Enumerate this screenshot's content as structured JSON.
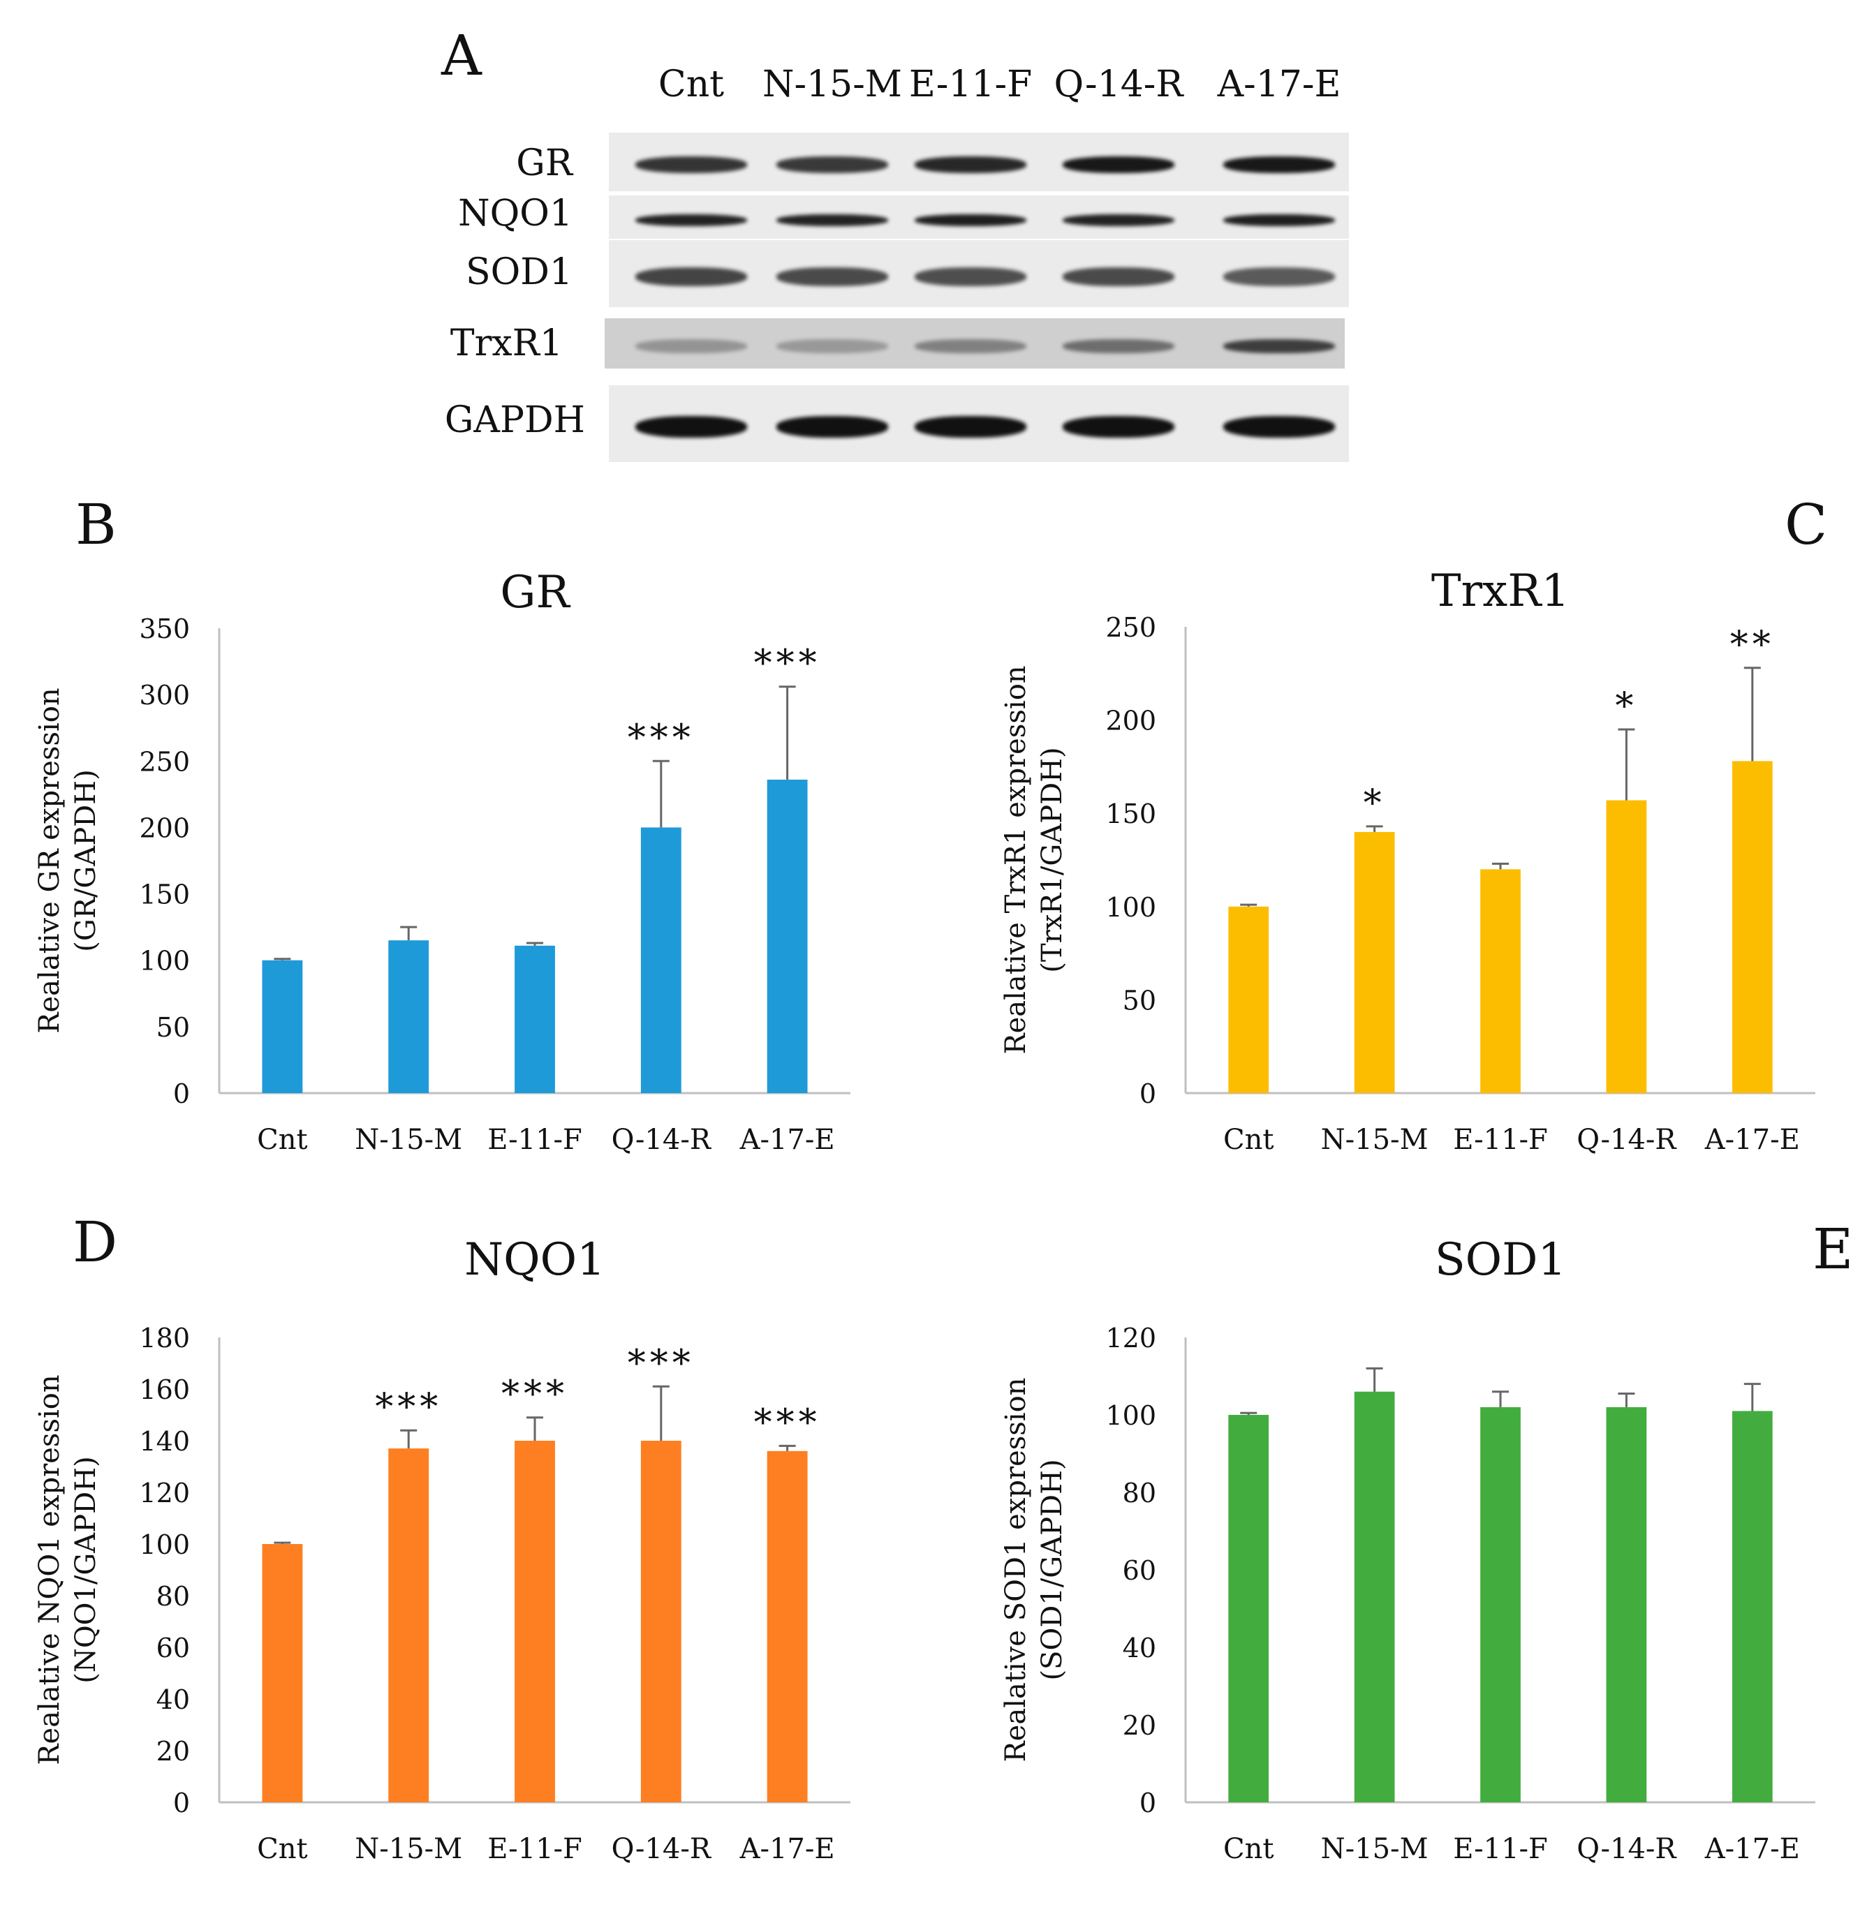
{
  "panels": {
    "a": "A",
    "b": "B",
    "c": "C",
    "d": "D",
    "e": "E"
  },
  "western_blot": {
    "lanes": [
      "Cnt",
      "N-15-M",
      "E-11-F",
      "Q-14-R",
      "A-17-E"
    ],
    "proteins": [
      {
        "name": "GR",
        "intensity": [
          0.82,
          0.8,
          0.88,
          0.95,
          0.95
        ]
      },
      {
        "name": "NQO1",
        "intensity": [
          0.9,
          0.9,
          0.92,
          0.9,
          0.92
        ]
      },
      {
        "name": "SOD1",
        "intensity": [
          0.75,
          0.72,
          0.7,
          0.72,
          0.65
        ]
      },
      {
        "name": "TrxR1",
        "intensity": [
          0.3,
          0.28,
          0.4,
          0.5,
          0.75
        ]
      },
      {
        "name": "GAPDH",
        "intensity": [
          0.98,
          0.98,
          0.98,
          0.98,
          0.98
        ]
      }
    ],
    "colors": {
      "background": "#ebebeb",
      "dark_strip": "#cfcfcf",
      "band": "#0d0d0d"
    }
  },
  "chart_data": [
    {
      "id": "B",
      "type": "bar",
      "title": "GR",
      "ylabel_line1": "Realative GR expression",
      "ylabel_line2": "(GR/GAPDH)",
      "categories": [
        "Cnt",
        "N-15-M",
        "E-11-F",
        "Q-14-R",
        "A-17-E"
      ],
      "values": [
        100,
        115,
        111,
        200,
        236
      ],
      "errors": [
        1,
        10,
        2,
        50,
        70
      ],
      "significance": [
        "",
        "",
        "",
        "***",
        "***"
      ],
      "ylim": [
        0,
        350
      ],
      "yticks": [
        0,
        50,
        100,
        150,
        200,
        250,
        300,
        350
      ],
      "color": "#1e9ad8"
    },
    {
      "id": "C",
      "type": "bar",
      "title": "TrxR1",
      "ylabel_line1": "Realative TrxR1 expression",
      "ylabel_line2": "(TrxR1/GAPDH)",
      "categories": [
        "Cnt",
        "N-15-M",
        "E-11-F",
        "Q-14-R",
        "A-17-E"
      ],
      "values": [
        100,
        140,
        120,
        157,
        178
      ],
      "errors": [
        1,
        3,
        3,
        38,
        50
      ],
      "significance": [
        "",
        "*",
        "",
        "*",
        "**"
      ],
      "ylim": [
        0,
        250
      ],
      "yticks": [
        0,
        50,
        100,
        150,
        200,
        250
      ],
      "color": "#fcbd00"
    },
    {
      "id": "D",
      "type": "bar",
      "title": "NQO1",
      "ylabel_line1": "Realative NQO1 expression",
      "ylabel_line2": "(NQO1/GAPDH)",
      "categories": [
        "Cnt",
        "N-15-M",
        "E-11-F",
        "Q-14-R",
        "A-17-E"
      ],
      "values": [
        100,
        137,
        140,
        140,
        136
      ],
      "errors": [
        0.5,
        7,
        9,
        21,
        2
      ],
      "significance": [
        "",
        "***",
        "***",
        "***",
        "***"
      ],
      "ylim": [
        0,
        180
      ],
      "yticks": [
        0,
        20,
        40,
        60,
        80,
        100,
        120,
        140,
        160,
        180
      ],
      "color": "#fe7f21"
    },
    {
      "id": "E",
      "type": "bar",
      "title": "SOD1",
      "ylabel_line1": "Realative SOD1 expression",
      "ylabel_line2": "(SOD1/GAPDH)",
      "categories": [
        "Cnt",
        "N-15-M",
        "E-11-F",
        "Q-14-R",
        "A-17-E"
      ],
      "values": [
        100,
        106,
        102,
        102,
        101
      ],
      "errors": [
        0.5,
        6,
        4,
        3.5,
        7
      ],
      "significance": [
        "",
        "",
        "",
        "",
        ""
      ],
      "ylim": [
        0,
        120
      ],
      "yticks": [
        0,
        20,
        40,
        60,
        80,
        100,
        120
      ],
      "color": "#42ad3e"
    }
  ]
}
